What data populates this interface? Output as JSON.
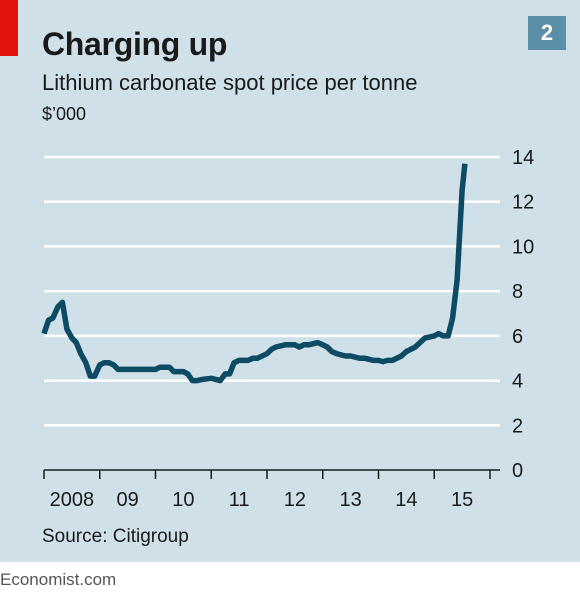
{
  "colors": {
    "panel": "#cfe0e9",
    "accent": "#e3120b",
    "line": "#0d4a63",
    "grid": "#ffffff",
    "badge": "#5b8fa8"
  },
  "badge": "2",
  "footer": "Economist.com",
  "chart_data": {
    "type": "line",
    "title": "Charging up",
    "subtitle": "Lithium carbonate spot price per tonne",
    "ylabel": "$’000",
    "source": "Source: Citigroup",
    "ylim": [
      0,
      14
    ],
    "yticks": [
      0,
      2,
      4,
      6,
      8,
      10,
      12,
      14
    ],
    "ytick_labels": [
      "0",
      "2",
      "4",
      "6",
      "8",
      "10",
      "12",
      "14"
    ],
    "x_range": [
      2008.0,
      2016.0
    ],
    "xticks": [
      2008,
      2009,
      2010,
      2011,
      2012,
      2013,
      2014,
      2015,
      2016
    ],
    "xtick_labels": [
      "2008",
      "09",
      "10",
      "11",
      "12",
      "13",
      "14",
      "15"
    ],
    "xtick_label_positions": [
      2008.5,
      2009.5,
      2010.5,
      2011.5,
      2012.5,
      2013.5,
      2014.5,
      2015.5
    ],
    "grid": true,
    "axis_side": "right",
    "series": [
      {
        "values": [
          [
            2008.0,
            6.1
          ],
          [
            2008.08,
            6.7
          ],
          [
            2008.16,
            6.8
          ],
          [
            2008.25,
            7.3
          ],
          [
            2008.33,
            7.5
          ],
          [
            2008.41,
            6.3
          ],
          [
            2008.5,
            5.9
          ],
          [
            2008.58,
            5.7
          ],
          [
            2008.66,
            5.2
          ],
          [
            2008.75,
            4.8
          ],
          [
            2008.83,
            4.2
          ],
          [
            2008.91,
            4.2
          ],
          [
            2009.0,
            4.7
          ],
          [
            2009.08,
            4.8
          ],
          [
            2009.16,
            4.8
          ],
          [
            2009.25,
            4.7
          ],
          [
            2009.33,
            4.5
          ],
          [
            2009.5,
            4.5
          ],
          [
            2009.75,
            4.5
          ],
          [
            2010.0,
            4.5
          ],
          [
            2010.08,
            4.6
          ],
          [
            2010.25,
            4.6
          ],
          [
            2010.33,
            4.4
          ],
          [
            2010.5,
            4.4
          ],
          [
            2010.58,
            4.3
          ],
          [
            2010.66,
            4.0
          ],
          [
            2010.75,
            4.0
          ],
          [
            2010.83,
            4.05
          ],
          [
            2011.0,
            4.1
          ],
          [
            2011.16,
            4.0
          ],
          [
            2011.25,
            4.3
          ],
          [
            2011.33,
            4.3
          ],
          [
            2011.41,
            4.8
          ],
          [
            2011.5,
            4.9
          ],
          [
            2011.58,
            4.9
          ],
          [
            2011.66,
            4.9
          ],
          [
            2011.75,
            5.0
          ],
          [
            2011.83,
            5.0
          ],
          [
            2012.0,
            5.2
          ],
          [
            2012.08,
            5.4
          ],
          [
            2012.16,
            5.5
          ],
          [
            2012.33,
            5.6
          ],
          [
            2012.5,
            5.6
          ],
          [
            2012.58,
            5.5
          ],
          [
            2012.66,
            5.6
          ],
          [
            2012.75,
            5.6
          ],
          [
            2012.91,
            5.7
          ],
          [
            2013.0,
            5.6
          ],
          [
            2013.08,
            5.5
          ],
          [
            2013.16,
            5.3
          ],
          [
            2013.25,
            5.2
          ],
          [
            2013.33,
            5.15
          ],
          [
            2013.41,
            5.1
          ],
          [
            2013.5,
            5.1
          ],
          [
            2013.66,
            5.0
          ],
          [
            2013.75,
            5.0
          ],
          [
            2013.91,
            4.9
          ],
          [
            2014.0,
            4.9
          ],
          [
            2014.08,
            4.85
          ],
          [
            2014.16,
            4.9
          ],
          [
            2014.25,
            4.9
          ],
          [
            2014.41,
            5.1
          ],
          [
            2014.5,
            5.3
          ],
          [
            2014.66,
            5.5
          ],
          [
            2014.83,
            5.9
          ],
          [
            2015.0,
            6.0
          ],
          [
            2015.08,
            6.1
          ],
          [
            2015.16,
            6.0
          ],
          [
            2015.25,
            6.0
          ],
          [
            2015.33,
            6.8
          ],
          [
            2015.41,
            8.5
          ],
          [
            2015.5,
            12.5
          ],
          [
            2015.55,
            13.7
          ]
        ]
      }
    ]
  }
}
